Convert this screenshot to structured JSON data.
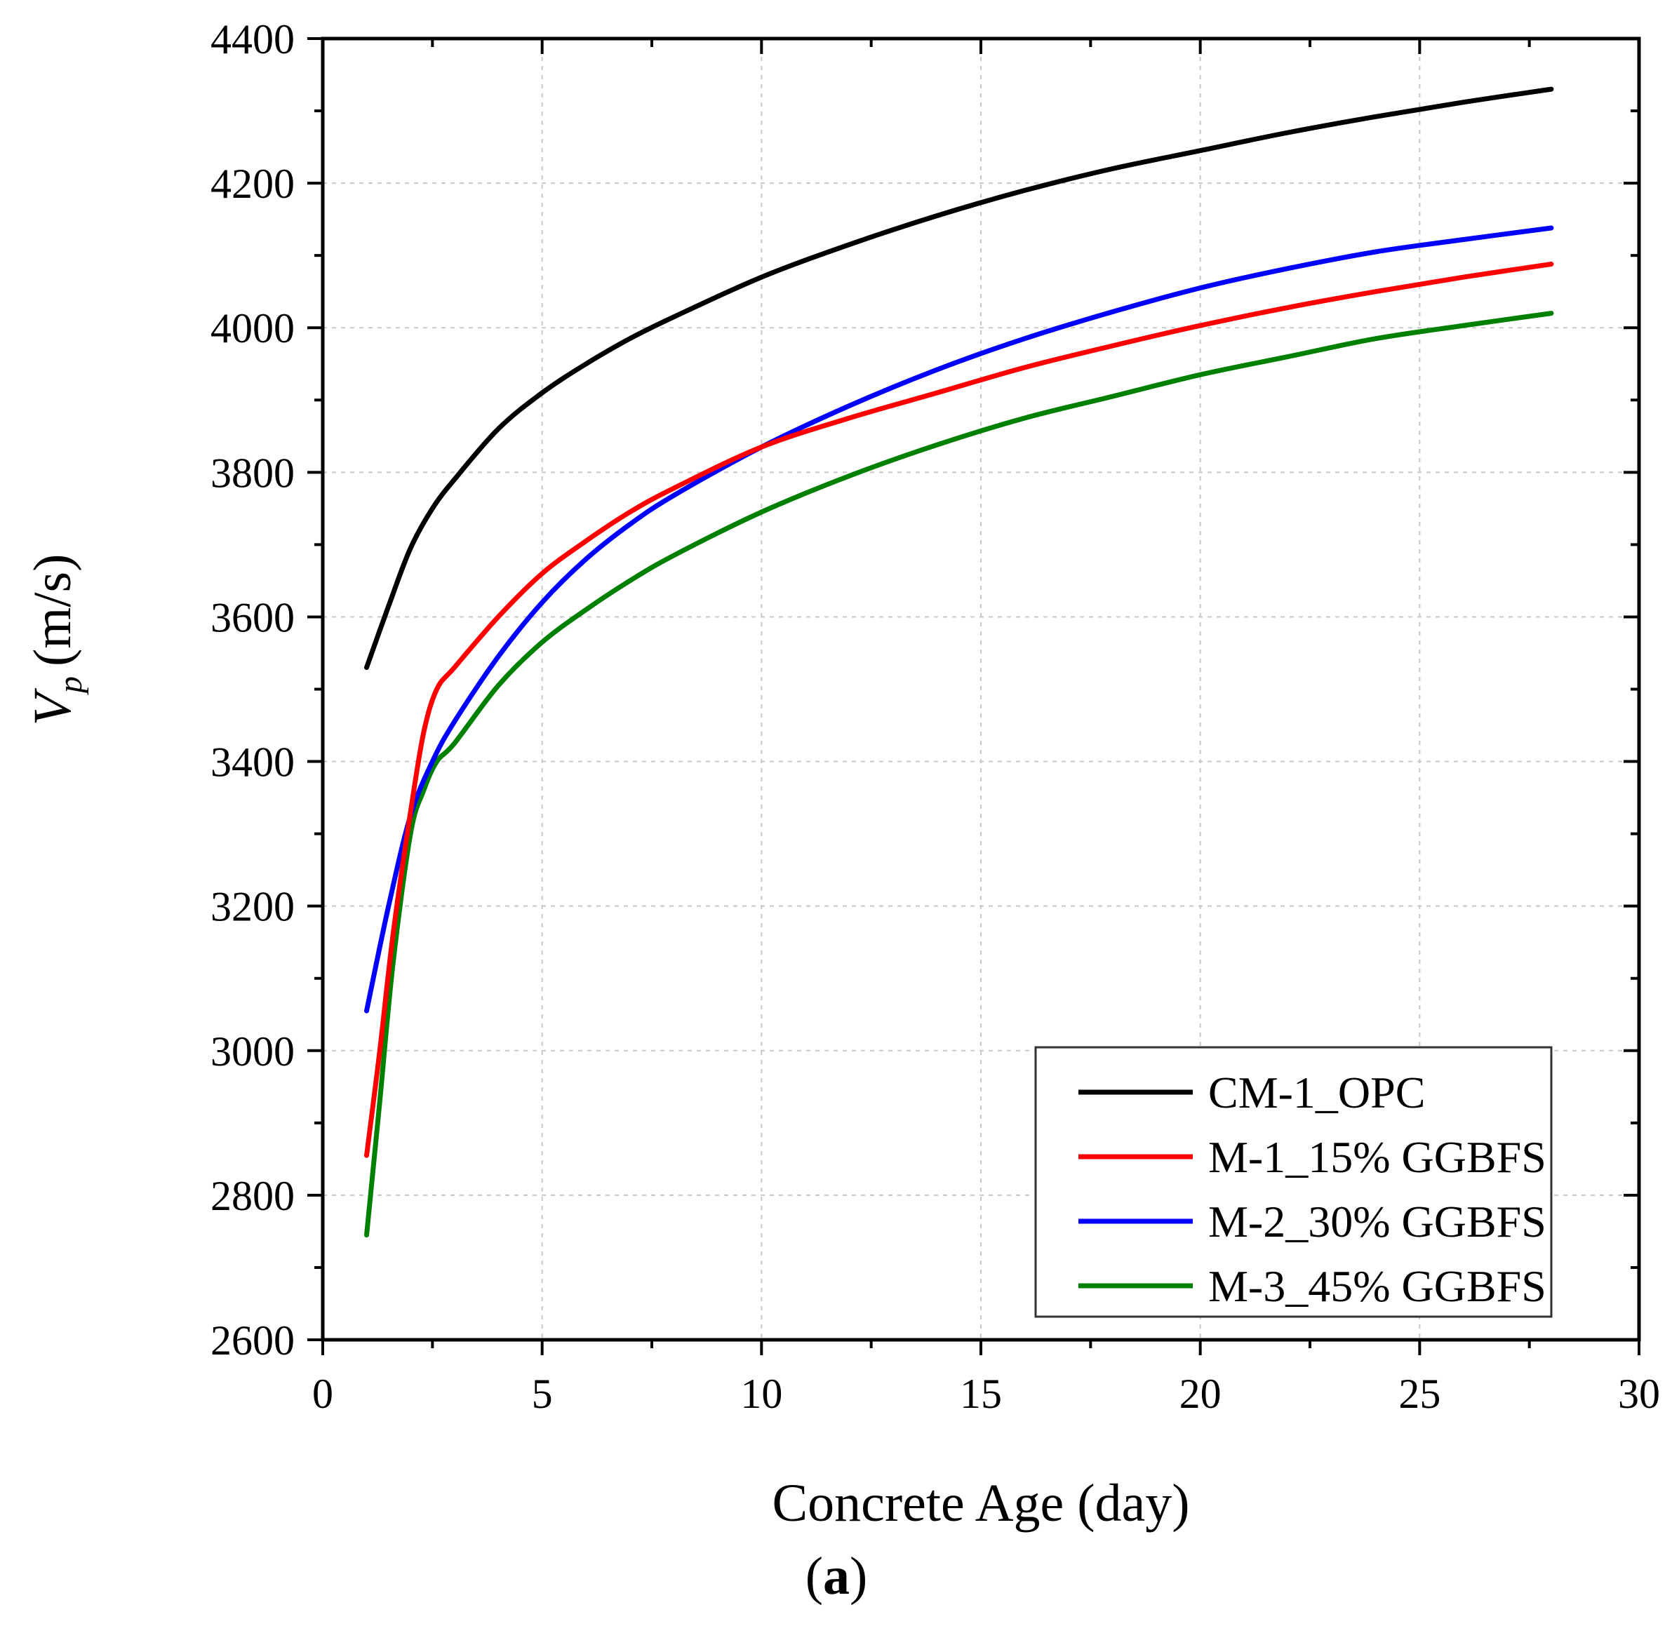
{
  "chart_data": {
    "type": "line",
    "title": "",
    "xlabel": "Concrete Age (day)",
    "ylabel_main": "V",
    "ylabel_sub": "p",
    "ylabel_unit": "(m/s)",
    "xlim": [
      0,
      30
    ],
    "ylim": [
      2600,
      4400
    ],
    "xticks": [
      "0",
      "5",
      "10",
      "15",
      "20",
      "25",
      "30"
    ],
    "yticks": [
      "2600",
      "2800",
      "3000",
      "3200",
      "3400",
      "3600",
      "3800",
      "4000",
      "4200",
      "4400"
    ],
    "grid": true,
    "legend_position": "bottom-right",
    "caption": "a",
    "series": [
      {
        "name": "CM-1_OPC",
        "color": "#000000",
        "x": [
          1,
          1.5,
          2,
          2.5,
          3,
          4,
          5,
          6,
          7,
          8,
          10,
          12,
          14,
          16,
          18,
          20,
          22,
          24,
          26,
          28
        ],
        "y": [
          3530,
          3615,
          3695,
          3750,
          3790,
          3860,
          3910,
          3950,
          3985,
          4015,
          4070,
          4115,
          4155,
          4190,
          4220,
          4245,
          4270,
          4292,
          4312,
          4330
        ]
      },
      {
        "name": "M-1_15% GGBFS",
        "color": "#ff0000",
        "x": [
          1,
          1.3,
          1.6,
          2,
          2.3,
          2.6,
          3,
          4,
          5,
          6,
          7,
          8,
          10,
          12,
          14,
          16,
          18,
          20,
          22,
          24,
          26,
          28
        ],
        "y": [
          2855,
          3000,
          3160,
          3330,
          3440,
          3500,
          3530,
          3600,
          3660,
          3705,
          3745,
          3778,
          3835,
          3875,
          3910,
          3945,
          3975,
          4003,
          4028,
          4050,
          4070,
          4088
        ]
      },
      {
        "name": "M-2_30% GGBFS",
        "color": "#0000ff",
        "x": [
          1,
          1.5,
          2,
          2.5,
          3,
          4,
          5,
          6,
          7,
          8,
          10,
          12,
          14,
          16,
          18,
          20,
          22,
          24,
          26,
          28
        ],
        "y": [
          3055,
          3200,
          3325,
          3400,
          3455,
          3545,
          3620,
          3680,
          3728,
          3768,
          3835,
          3892,
          3942,
          3985,
          4022,
          4055,
          4082,
          4105,
          4122,
          4138
        ]
      },
      {
        "name": "M-3_45% GGBFS",
        "color": "#008000",
        "x": [
          1,
          1.3,
          1.6,
          2,
          2.3,
          2.6,
          3,
          4,
          5,
          6,
          7,
          8,
          10,
          12,
          14,
          16,
          18,
          20,
          22,
          24,
          26,
          28
        ],
        "y": [
          2745,
          2930,
          3120,
          3300,
          3360,
          3400,
          3425,
          3505,
          3565,
          3610,
          3650,
          3685,
          3745,
          3795,
          3838,
          3875,
          3905,
          3935,
          3960,
          3985,
          4003,
          4020
        ]
      }
    ]
  }
}
